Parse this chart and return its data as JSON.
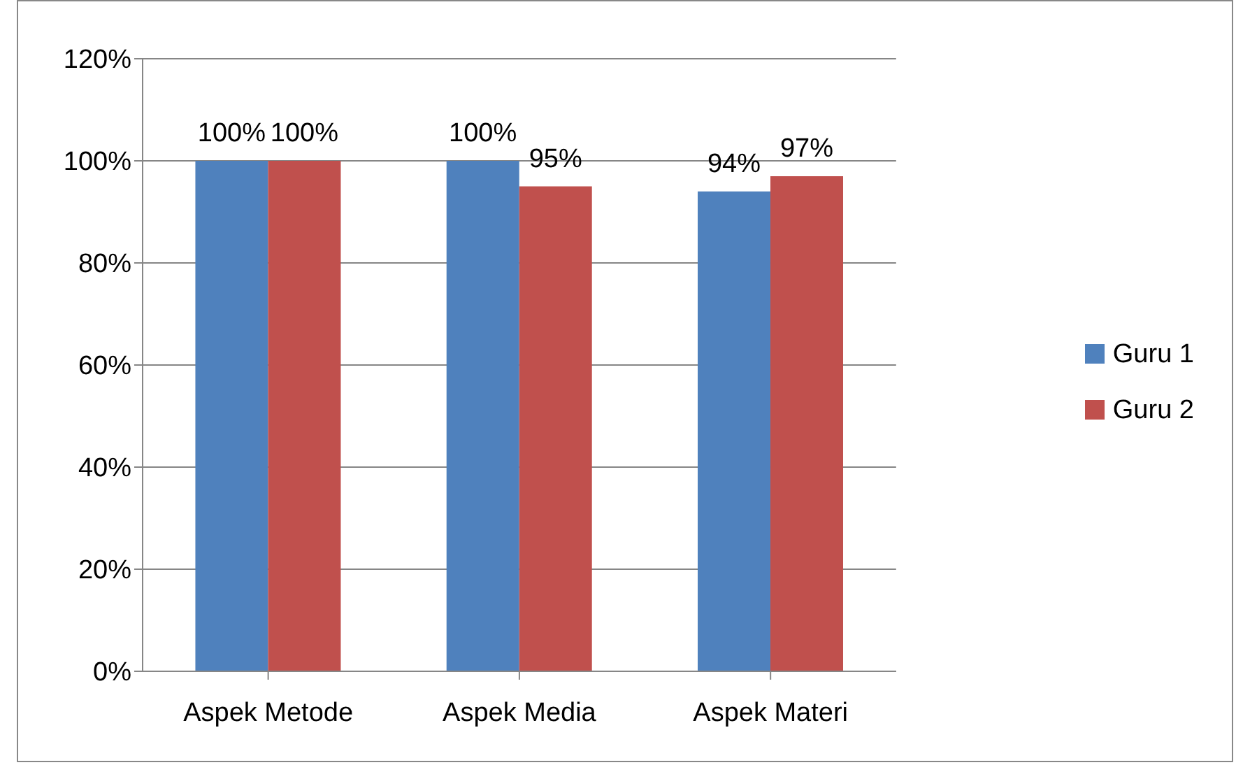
{
  "chart_data": {
    "type": "bar",
    "categories": [
      "Aspek Metode",
      "Aspek Media",
      "Aspek Materi"
    ],
    "series": [
      {
        "name": "Guru 1",
        "color": "#4f81bd",
        "values": [
          100,
          100,
          94
        ],
        "value_labels": [
          "100%",
          "100%",
          "94%"
        ]
      },
      {
        "name": "Guru 2",
        "color": "#c0504d",
        "values": [
          100,
          95,
          97
        ],
        "value_labels": [
          "100%",
          "95%",
          "97%"
        ]
      }
    ],
    "ylim": [
      0,
      120
    ],
    "yticks": [
      {
        "value": 0,
        "label": "0%"
      },
      {
        "value": 20,
        "label": "20%"
      },
      {
        "value": 40,
        "label": "40%"
      },
      {
        "value": 60,
        "label": "60%"
      },
      {
        "value": 80,
        "label": "80%"
      },
      {
        "value": 100,
        "label": "100%"
      },
      {
        "value": 120,
        "label": "120%"
      }
    ],
    "grid": "y",
    "legend": "right"
  }
}
